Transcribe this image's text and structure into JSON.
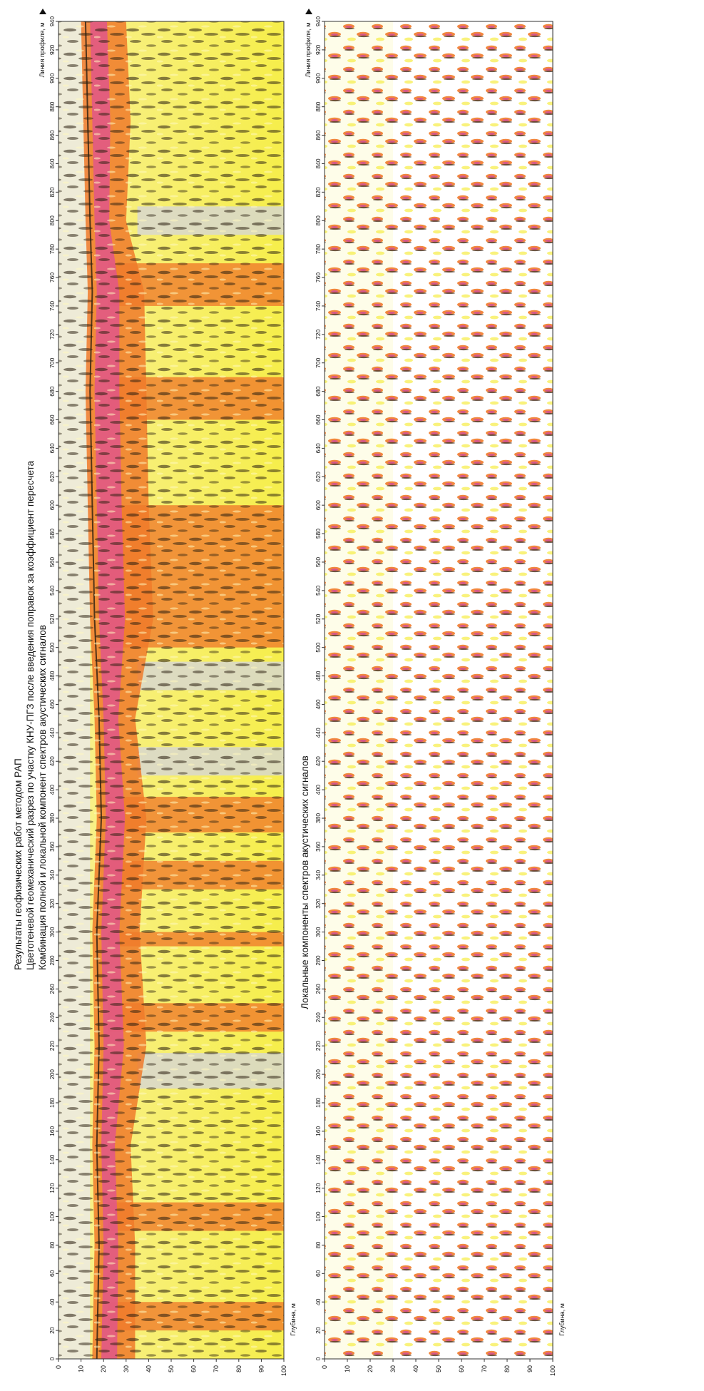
{
  "titles": {
    "line1": "Результаты геофизических работ методом  РАП",
    "line2": "Цветотеневой геомеханический разрез по участку КНУ-ПГЗ после введения поправок за коэффициент пересчета",
    "line3": "Комбинация полной и локальной компонент спектров акустических сигналов"
  },
  "colors": {
    "pink": "#e0568a",
    "orange": "#f07a2a",
    "yellow": "#f6ee4a",
    "gray": "#d6d6d6",
    "dark": "#2b1f10"
  },
  "chart_data": [
    {
      "type": "heatmap",
      "title": "",
      "xlabel": "Линия профиля, м",
      "ylabel": "Глубина, м",
      "x_ticks": [
        "0",
        "20",
        "40",
        "60",
        "80",
        "100",
        "120",
        "140",
        "160",
        "180",
        "200",
        "220",
        "240",
        "260",
        "280",
        "300",
        "320",
        "340",
        "360",
        "380",
        "400",
        "420",
        "440",
        "460",
        "480",
        "500",
        "520",
        "540",
        "560",
        "580",
        "600",
        "620",
        "640",
        "660",
        "680",
        "700",
        "720",
        "740",
        "760",
        "780",
        "800",
        "820",
        "840",
        "860",
        "880",
        "900",
        "920",
        "940"
      ],
      "y_ticks": [
        "0",
        "10",
        "20",
        "30",
        "40",
        "50",
        "60",
        "70",
        "80",
        "90",
        "100"
      ],
      "xlim": [
        0,
        940
      ],
      "ylim": [
        0,
        100
      ],
      "pink_band_depth": [
        {
          "x": 0,
          "top": 18,
          "bottom": 30
        },
        {
          "x": 80,
          "top": 19,
          "bottom": 30
        },
        {
          "x": 150,
          "top": 18,
          "bottom": 28
        },
        {
          "x": 220,
          "top": 19,
          "bottom": 35
        },
        {
          "x": 300,
          "top": 18,
          "bottom": 32
        },
        {
          "x": 380,
          "top": 20,
          "bottom": 35
        },
        {
          "x": 450,
          "top": 19,
          "bottom": 30
        },
        {
          "x": 520,
          "top": 17,
          "bottom": 38
        },
        {
          "x": 600,
          "top": 16,
          "bottom": 36
        },
        {
          "x": 680,
          "top": 15,
          "bottom": 35
        },
        {
          "x": 750,
          "top": 16,
          "bottom": 34
        },
        {
          "x": 800,
          "top": 15,
          "bottom": 26
        },
        {
          "x": 870,
          "top": 14,
          "bottom": 28
        },
        {
          "x": 940,
          "top": 13,
          "bottom": 26
        }
      ],
      "orange_columns": [
        {
          "x_from": 20,
          "x_to": 40
        },
        {
          "x_from": 90,
          "x_to": 110
        },
        {
          "x_from": 230,
          "x_to": 250
        },
        {
          "x_from": 290,
          "x_to": 300
        },
        {
          "x_from": 330,
          "x_to": 350
        },
        {
          "x_from": 370,
          "x_to": 395
        },
        {
          "x_from": 500,
          "x_to": 600
        },
        {
          "x_from": 660,
          "x_to": 690
        },
        {
          "x_from": 740,
          "x_to": 770
        }
      ],
      "light_columns": [
        {
          "x_from": 190,
          "x_to": 215
        },
        {
          "x_from": 410,
          "x_to": 430
        },
        {
          "x_from": 470,
          "x_to": 490
        },
        {
          "x_from": 790,
          "x_to": 810
        }
      ]
    },
    {
      "type": "heatmap",
      "title": "Локальные компоненты спектров акустических сигналов",
      "xlabel": "Линия профиля, м",
      "ylabel": "Глубина, м",
      "x_ticks": [
        "0",
        "20",
        "40",
        "60",
        "80",
        "100",
        "120",
        "140",
        "160",
        "180",
        "200",
        "220",
        "240",
        "260",
        "280",
        "300",
        "320",
        "340",
        "360",
        "380",
        "400",
        "420",
        "440",
        "460",
        "480",
        "500",
        "520",
        "540",
        "560",
        "580",
        "600",
        "620",
        "640",
        "660",
        "680",
        "700",
        "720",
        "740",
        "760",
        "780",
        "800",
        "820",
        "840",
        "860",
        "880",
        "900",
        "920",
        "940"
      ],
      "y_ticks": [
        "0",
        "10",
        "20",
        "30",
        "40",
        "50",
        "60",
        "70",
        "80",
        "90",
        "100"
      ],
      "xlim": [
        0,
        940
      ],
      "ylim": [
        0,
        100
      ]
    }
  ]
}
